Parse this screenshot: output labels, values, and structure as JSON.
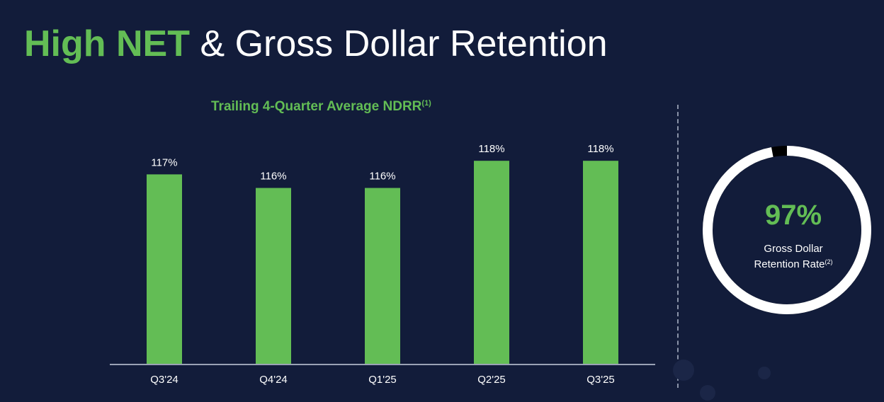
{
  "title": {
    "accent": "High NET",
    "rest": "& Gross Dollar Retention"
  },
  "colors": {
    "background": "#121c3a",
    "accent_green": "#63bd55",
    "text_white": "#ffffff",
    "donut_gap": "#000000"
  },
  "chart_data": {
    "type": "bar",
    "title": "Trailing 4-Quarter Average NDRR",
    "title_footnote": "(1)",
    "categories": [
      "Q3'24",
      "Q4'24",
      "Q1'25",
      "Q2'25",
      "Q3'25"
    ],
    "values": [
      117,
      116,
      116,
      118,
      118
    ],
    "data_labels": [
      "117%",
      "116%",
      "116%",
      "118%",
      "118%"
    ],
    "unit": "%",
    "ylim": [
      103,
      119
    ],
    "grid": false,
    "xlabel": "",
    "ylabel": ""
  },
  "gross_retention": {
    "value": 97,
    "value_label": "97%",
    "label_line1": "Gross Dollar",
    "label_line2": "Retention Rate",
    "footnote": "(2)"
  }
}
